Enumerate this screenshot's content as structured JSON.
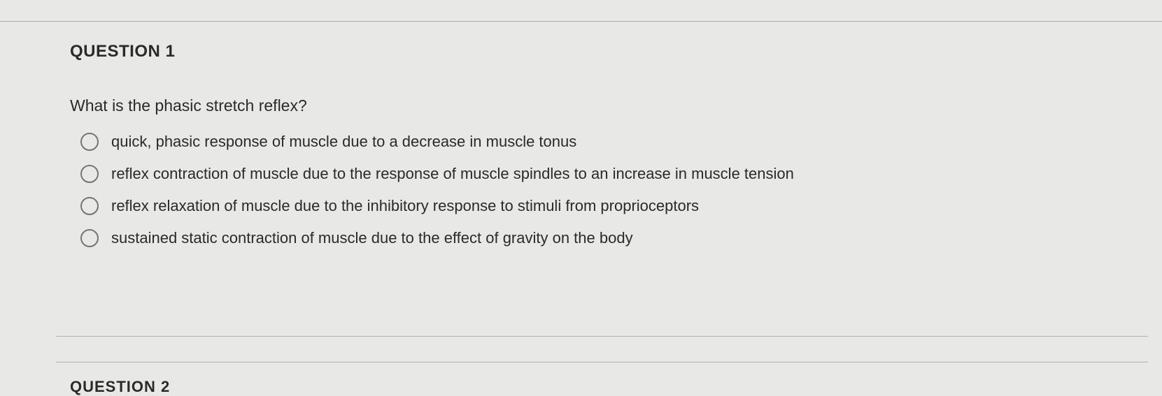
{
  "question": {
    "heading": "QUESTION 1",
    "prompt": "What is the phasic stretch reflex?",
    "options": [
      "quick, phasic response of muscle due to a decrease in muscle tonus",
      "reflex contraction of muscle due to the response of muscle spindles to an increase in muscle tension",
      "reflex relaxation of muscle due to the inhibitory response to stimuli from proprioceptors",
      "sustained static contraction of muscle due to the effect of gravity on the body"
    ]
  },
  "next_question_partial": "QUESTION 2",
  "colors": {
    "background": "#e8e8e6",
    "text": "#2a2a2a",
    "radio_border": "#757575",
    "divider": "#b0b0ae"
  }
}
